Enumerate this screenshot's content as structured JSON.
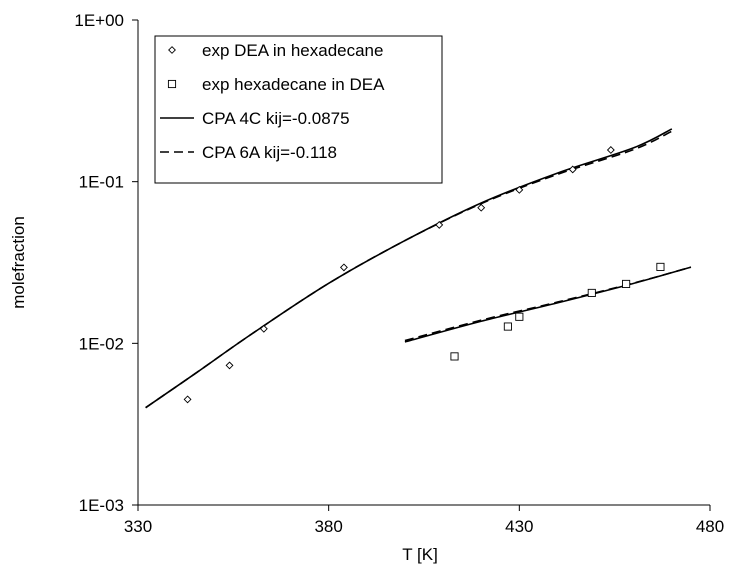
{
  "chart_data": {
    "type": "scatter",
    "title": "",
    "xlabel": "T [K]",
    "ylabel": "molefraction",
    "xlim": [
      330,
      480
    ],
    "ylim": [
      0.001,
      1
    ],
    "yscale": "log",
    "x_ticks": [
      330,
      380,
      430,
      480
    ],
    "x_tick_labels": [
      "330",
      "380",
      "430",
      "480"
    ],
    "y_ticks": [
      0.001,
      0.01,
      0.1,
      1
    ],
    "y_tick_labels": [
      "1E-03",
      "1E-02",
      "1E-01",
      "1E+00"
    ],
    "grid": false,
    "legend_position": "top-left",
    "series": [
      {
        "name": "exp DEA in hexadecane",
        "kind": "marker",
        "marker": "diamond",
        "x": [
          343,
          354,
          363,
          384,
          409,
          420,
          430,
          444,
          454
        ],
        "y": [
          0.0045,
          0.0073,
          0.0123,
          0.0295,
          0.054,
          0.069,
          0.089,
          0.119,
          0.157
        ]
      },
      {
        "name": "exp hexadecane in DEA",
        "kind": "marker",
        "marker": "square",
        "x": [
          413,
          427,
          430,
          449,
          458,
          467
        ],
        "y": [
          0.0083,
          0.0127,
          0.0146,
          0.0205,
          0.0233,
          0.0297
        ]
      },
      {
        "name": "CPA 4C kij=-0.0875",
        "kind": "line",
        "dash": "solid",
        "x": [
          332,
          345,
          360,
          380,
          400,
          420,
          440,
          460,
          470
        ],
        "y": [
          0.004,
          0.0065,
          0.0115,
          0.0235,
          0.0432,
          0.0738,
          0.113,
          0.162,
          0.212
        ]
      },
      {
        "name": "CPA 4C kij=-0.0875",
        "kind": "line",
        "dash": "solid",
        "legend": false,
        "x": [
          400,
          420,
          440,
          460,
          475
        ],
        "y": [
          0.0102,
          0.0137,
          0.0178,
          0.0235,
          0.0296
        ]
      },
      {
        "name": "CPA 6A kij=-0.118",
        "kind": "line",
        "dash": "dashed",
        "x": [
          332,
          345,
          360,
          380,
          400,
          420,
          440,
          460,
          470
        ],
        "y": [
          0.004,
          0.0065,
          0.0115,
          0.0235,
          0.0432,
          0.0731,
          0.111,
          0.158,
          0.205
        ]
      },
      {
        "name": "CPA 6A kij=-0.118",
        "kind": "line",
        "dash": "dashed",
        "legend": false,
        "x": [
          400,
          420,
          440,
          460,
          475
        ],
        "y": [
          0.0104,
          0.0139,
          0.018,
          0.0236,
          0.0296
        ]
      }
    ]
  }
}
